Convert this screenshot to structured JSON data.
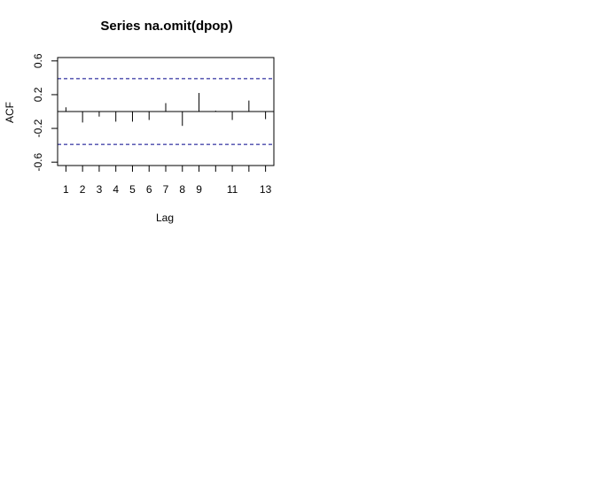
{
  "chart_data": {
    "type": "bar",
    "title": "Series  na.omit(dpop)",
    "xlabel": "Lag",
    "ylabel": "ACF",
    "x": [
      1,
      2,
      3,
      4,
      5,
      6,
      7,
      8,
      9,
      10,
      11,
      12,
      13
    ],
    "values": [
      0.05,
      -0.13,
      -0.06,
      -0.12,
      -0.12,
      -0.1,
      0.1,
      -0.17,
      0.22,
      0.01,
      -0.1,
      0.13,
      -0.09
    ],
    "confidence_bound": 0.39,
    "xlim": [
      0.5,
      13.5
    ],
    "ylim": [
      -0.64,
      0.64
    ],
    "xticks": [
      1,
      2,
      3,
      4,
      5,
      6,
      7,
      8,
      9,
      10,
      11,
      12,
      13
    ],
    "xtick_labels": [
      "1",
      "2",
      "3",
      "4",
      "5",
      "6",
      "7",
      "8",
      "9",
      "",
      "11",
      "",
      "13"
    ],
    "yticks": [
      -0.6,
      -0.2,
      0.2,
      0.6
    ],
    "ytick_labels": [
      "-0.6",
      "-0.2",
      "0.2",
      "0.6"
    ],
    "colors": {
      "bars": "#000000",
      "zero_line": "#000000",
      "confidence_lines": "#00008b",
      "frame": "#000000"
    }
  }
}
